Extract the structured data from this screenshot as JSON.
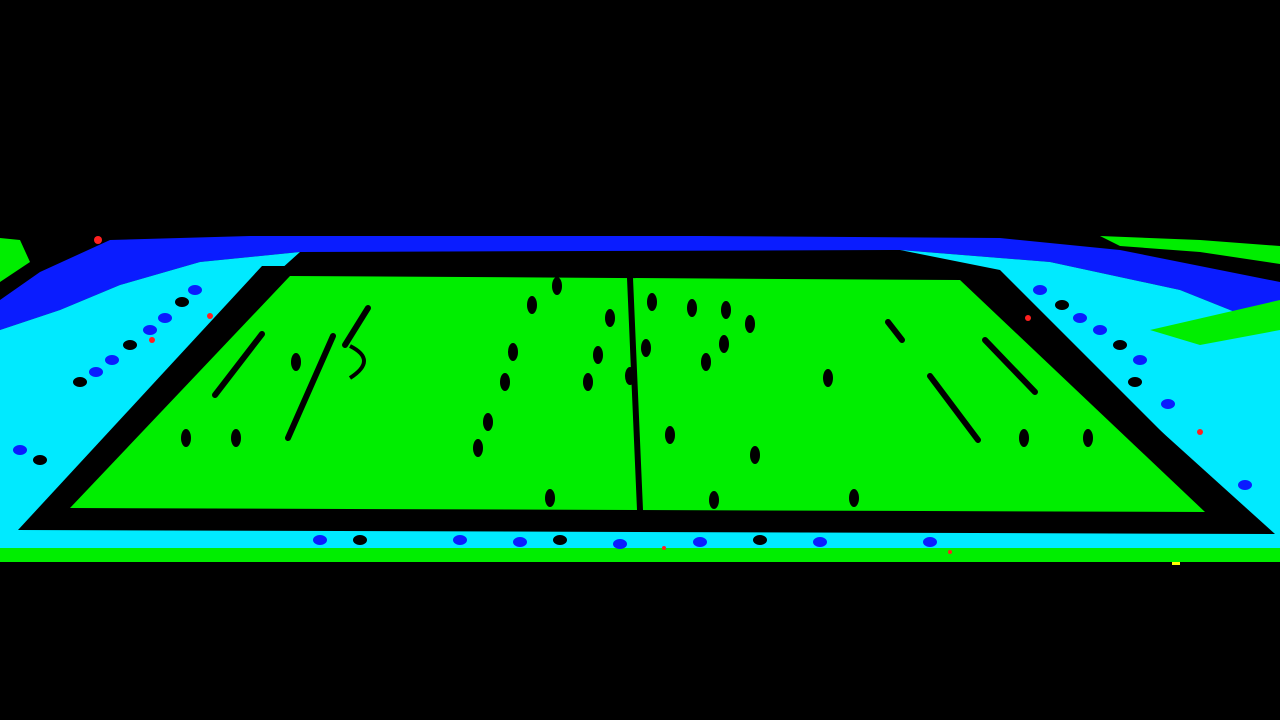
{
  "image": {
    "kind": "posterized aerial view of a football pitch",
    "palette": {
      "background": "#000000",
      "pitch": "#00ee00",
      "stands": "#00eaff",
      "roof": "#0a1cff",
      "markings": "#000000",
      "highlight": "#ff2020",
      "accent": "#ffff00"
    },
    "player_count": 28
  }
}
